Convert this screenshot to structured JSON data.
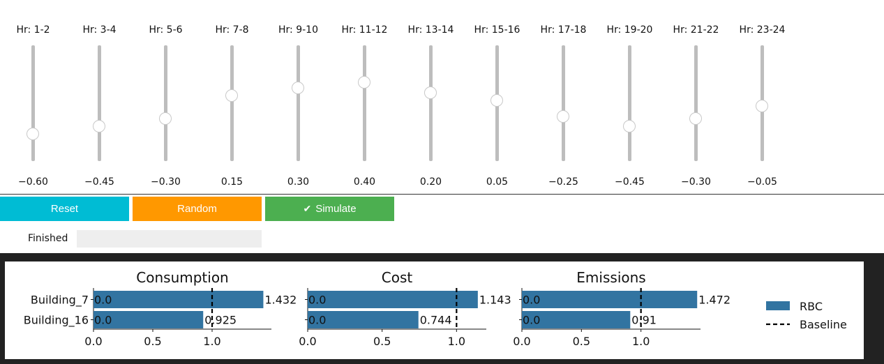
{
  "sliders": [
    {
      "label": "Hr: 1-2",
      "value": "−0.60",
      "level": -0.6
    },
    {
      "label": "Hr: 3-4",
      "value": "−0.45",
      "level": -0.45
    },
    {
      "label": "Hr: 5-6",
      "value": "−0.30",
      "level": -0.3
    },
    {
      "label": "Hr: 7-8",
      "value": "0.15",
      "level": 0.15
    },
    {
      "label": "Hr: 9-10",
      "value": "0.30",
      "level": 0.3
    },
    {
      "label": "Hr: 11-12",
      "value": "0.40",
      "level": 0.4
    },
    {
      "label": "Hr: 13-14",
      "value": "0.20",
      "level": 0.2
    },
    {
      "label": "Hr: 15-16",
      "value": "0.05",
      "level": 0.05
    },
    {
      "label": "Hr: 17-18",
      "value": "−0.25",
      "level": -0.25
    },
    {
      "label": "Hr: 19-20",
      "value": "−0.45",
      "level": -0.45
    },
    {
      "label": "Hr: 21-22",
      "value": "−0.30",
      "level": -0.3
    },
    {
      "label": "Hr: 23-24",
      "value": "−0.05",
      "level": -0.05
    }
  ],
  "slider_range": [
    -1,
    1
  ],
  "buttons": {
    "reset": "Reset",
    "random": "Random",
    "simulate": "Simulate",
    "simulate_icon": "check-icon"
  },
  "status": {
    "label": "Finished",
    "progress": 0
  },
  "colors": {
    "reset": "#00bcd4",
    "random": "#ff9800",
    "simulate": "#4caf50",
    "bar": "#3274a1"
  },
  "chart_data": [
    {
      "type": "bar",
      "orientation": "horizontal",
      "title": "Consumption",
      "categories": [
        "Building_7",
        "Building_16"
      ],
      "values": [
        1.432,
        0.925
      ],
      "value_labels": [
        "1.432",
        "0.925"
      ],
      "baseline": 1.0,
      "xticks": [
        "0.0",
        "0.5",
        "1.0"
      ],
      "xlim": [
        0,
        1.5
      ]
    },
    {
      "type": "bar",
      "orientation": "horizontal",
      "title": "Cost",
      "categories": [
        "Building_7",
        "Building_16"
      ],
      "values": [
        1.143,
        0.744
      ],
      "value_labels": [
        "1.143",
        "0.744"
      ],
      "baseline": 1.0,
      "xticks": [
        "0.0",
        "0.5",
        "1.0"
      ],
      "xlim": [
        0,
        1.2
      ]
    },
    {
      "type": "bar",
      "orientation": "horizontal",
      "title": "Emissions",
      "categories": [
        "Building_7",
        "Building_16"
      ],
      "values": [
        1.472,
        0.91
      ],
      "value_labels": [
        "1.472",
        "0.91"
      ],
      "baseline": 1.0,
      "xticks": [
        "0.0",
        "0.5",
        "1.0"
      ],
      "xlim": [
        0,
        1.5
      ]
    }
  ],
  "legend": {
    "placement": "right",
    "items": [
      {
        "name": "RBC",
        "style": "bar"
      },
      {
        "name": "Baseline",
        "style": "dashed"
      }
    ]
  }
}
